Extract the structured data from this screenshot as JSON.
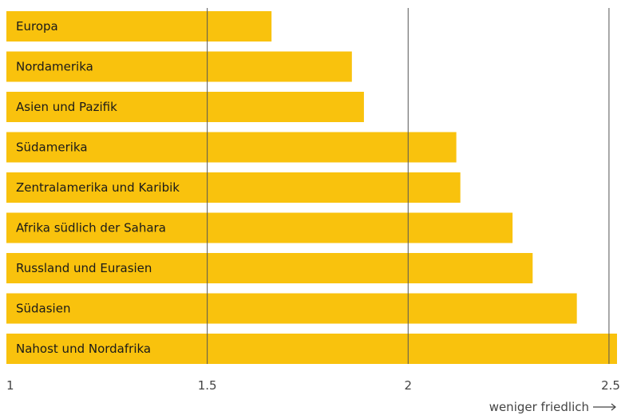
{
  "chart_data": {
    "type": "bar",
    "orientation": "horizontal",
    "categories": [
      "Europa",
      "Nordamerika",
      "Asien und Pazifik",
      "Südamerika",
      "Zentralamerika und Karibik",
      "Afrika südlich der Sahara",
      "Russland und Eurasien",
      "Südasien",
      "Nahost und Nordafrika"
    ],
    "values": [
      1.66,
      1.86,
      1.89,
      2.12,
      2.13,
      2.26,
      2.31,
      2.42,
      2.52
    ],
    "xlim": [
      1,
      2.52
    ],
    "xticks": [
      1,
      1.5,
      2,
      2.5
    ],
    "xtick_labels": [
      "1",
      "1.5",
      "2",
      "2.5"
    ],
    "xlabel": "weniger friedlich",
    "grid": "vertical",
    "bar_color": "#f9c20d"
  }
}
